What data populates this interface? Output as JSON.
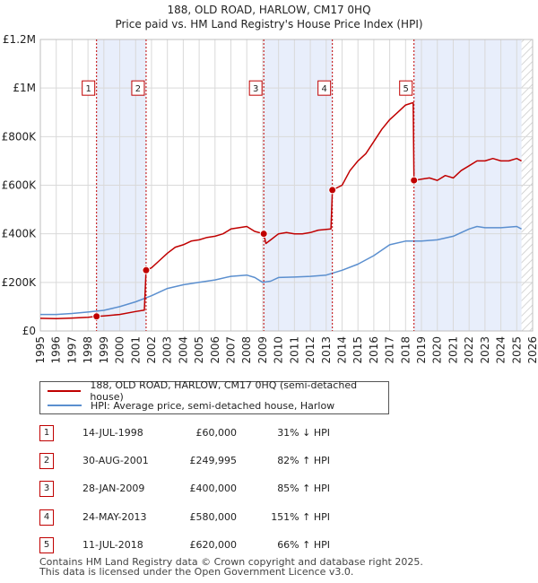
{
  "chart_data": {
    "type": "line",
    "title": "188, OLD ROAD, HARLOW, CM17 0HQ",
    "subtitle": "Price paid vs. HM Land Registry's House Price Index (HPI)",
    "xlim": [
      1995,
      2026
    ],
    "ylim": [
      0,
      1200000
    ],
    "x_ticks": [
      1995,
      1996,
      1997,
      1998,
      1999,
      2000,
      2001,
      2002,
      2003,
      2004,
      2005,
      2006,
      2007,
      2008,
      2009,
      2010,
      2011,
      2012,
      2013,
      2014,
      2015,
      2016,
      2017,
      2018,
      2019,
      2020,
      2021,
      2022,
      2023,
      2024,
      2025,
      2026
    ],
    "y_ticks": [
      {
        "value": 0,
        "label": "£0"
      },
      {
        "value": 200000,
        "label": "£200K"
      },
      {
        "value": 400000,
        "label": "£400K"
      },
      {
        "value": 600000,
        "label": "£600K"
      },
      {
        "value": 800000,
        "label": "£800K"
      },
      {
        "value": 1000000,
        "label": "£1M"
      },
      {
        "value": 1200000,
        "label": "£1.2M"
      }
    ],
    "shaded_spans": [
      [
        1998.54,
        2001.66
      ],
      [
        2009.07,
        2013.39
      ],
      [
        2018.53,
        2025.3
      ]
    ],
    "hatched_from": 2025.3,
    "series": [
      {
        "name": "188, OLD ROAD, HARLOW, CM17 0HQ (semi-detached house)",
        "color": "#c00000",
        "points": [
          [
            1995.0,
            52000
          ],
          [
            1996.0,
            51000
          ],
          [
            1997.0,
            53000
          ],
          [
            1998.0,
            56000
          ],
          [
            1998.54,
            60000
          ],
          [
            1999.0,
            62000
          ],
          [
            2000.0,
            68000
          ],
          [
            2001.0,
            80000
          ],
          [
            2001.55,
            86000
          ],
          [
            2001.66,
            249995
          ],
          [
            2002.0,
            260000
          ],
          [
            2002.5,
            290000
          ],
          [
            2003.0,
            320000
          ],
          [
            2003.5,
            345000
          ],
          [
            2004.0,
            355000
          ],
          [
            2004.5,
            370000
          ],
          [
            2005.0,
            375000
          ],
          [
            2005.5,
            385000
          ],
          [
            2006.0,
            390000
          ],
          [
            2006.5,
            400000
          ],
          [
            2007.0,
            420000
          ],
          [
            2007.5,
            425000
          ],
          [
            2008.0,
            430000
          ],
          [
            2008.5,
            410000
          ],
          [
            2009.07,
            400000
          ],
          [
            2009.2,
            360000
          ],
          [
            2009.6,
            380000
          ],
          [
            2010.0,
            400000
          ],
          [
            2010.5,
            405000
          ],
          [
            2011.0,
            400000
          ],
          [
            2011.5,
            400000
          ],
          [
            2012.0,
            405000
          ],
          [
            2012.5,
            415000
          ],
          [
            2013.3,
            420000
          ],
          [
            2013.39,
            580000
          ],
          [
            2014.0,
            600000
          ],
          [
            2014.5,
            660000
          ],
          [
            2015.0,
            700000
          ],
          [
            2015.5,
            730000
          ],
          [
            2016.0,
            780000
          ],
          [
            2016.5,
            830000
          ],
          [
            2017.0,
            870000
          ],
          [
            2017.5,
            900000
          ],
          [
            2018.0,
            930000
          ],
          [
            2018.48,
            940000
          ],
          [
            2018.53,
            620000
          ],
          [
            2019.0,
            625000
          ],
          [
            2019.5,
            630000
          ],
          [
            2020.0,
            620000
          ],
          [
            2020.5,
            640000
          ],
          [
            2021.0,
            630000
          ],
          [
            2021.5,
            660000
          ],
          [
            2022.0,
            680000
          ],
          [
            2022.5,
            700000
          ],
          [
            2023.0,
            700000
          ],
          [
            2023.5,
            710000
          ],
          [
            2024.0,
            700000
          ],
          [
            2024.5,
            700000
          ],
          [
            2025.0,
            710000
          ],
          [
            2025.3,
            700000
          ]
        ]
      },
      {
        "name": "HPI: Average price, semi-detached house, Harlow",
        "color": "#5b8fcf",
        "points": [
          [
            1995.0,
            68000
          ],
          [
            1996.0,
            68000
          ],
          [
            1997.0,
            72000
          ],
          [
            1998.0,
            78000
          ],
          [
            1999.0,
            85000
          ],
          [
            2000.0,
            100000
          ],
          [
            2001.0,
            120000
          ],
          [
            2002.0,
            145000
          ],
          [
            2003.0,
            175000
          ],
          [
            2004.0,
            190000
          ],
          [
            2005.0,
            200000
          ],
          [
            2006.0,
            210000
          ],
          [
            2007.0,
            225000
          ],
          [
            2008.0,
            230000
          ],
          [
            2008.5,
            220000
          ],
          [
            2009.0,
            200000
          ],
          [
            2009.5,
            205000
          ],
          [
            2010.0,
            220000
          ],
          [
            2011.0,
            222000
          ],
          [
            2012.0,
            225000
          ],
          [
            2013.0,
            230000
          ],
          [
            2014.0,
            250000
          ],
          [
            2015.0,
            275000
          ],
          [
            2016.0,
            310000
          ],
          [
            2017.0,
            355000
          ],
          [
            2018.0,
            370000
          ],
          [
            2019.0,
            370000
          ],
          [
            2020.0,
            375000
          ],
          [
            2021.0,
            390000
          ],
          [
            2022.0,
            420000
          ],
          [
            2022.5,
            430000
          ],
          [
            2023.0,
            425000
          ],
          [
            2024.0,
            425000
          ],
          [
            2025.0,
            430000
          ],
          [
            2025.3,
            420000
          ]
        ]
      }
    ],
    "sales": [
      {
        "label": "1",
        "x": 1998.54,
        "y": 60000
      },
      {
        "label": "2",
        "x": 2001.66,
        "y": 249995
      },
      {
        "label": "3",
        "x": 2009.07,
        "y": 400000
      },
      {
        "label": "4",
        "x": 2013.39,
        "y": 580000
      },
      {
        "label": "5",
        "x": 2018.53,
        "y": 620000
      }
    ],
    "badge_value": 1000000
  },
  "legend": {
    "property_label": "188, OLD ROAD, HARLOW, CM17 0HQ (semi-detached house)",
    "hpi_label": "HPI: Average price, semi-detached house, Harlow"
  },
  "sales_table": [
    {
      "num": "1",
      "date": "14-JUL-1998",
      "price": "£60,000",
      "hpi": "31% ↓ HPI"
    },
    {
      "num": "2",
      "date": "30-AUG-2001",
      "price": "£249,995",
      "hpi": "82% ↑ HPI"
    },
    {
      "num": "3",
      "date": "28-JAN-2009",
      "price": "£400,000",
      "hpi": "85% ↑ HPI"
    },
    {
      "num": "4",
      "date": "24-MAY-2013",
      "price": "£580,000",
      "hpi": "151% ↑ HPI"
    },
    {
      "num": "5",
      "date": "11-JUL-2018",
      "price": "£620,000",
      "hpi": "66% ↑ HPI"
    }
  ],
  "footer": {
    "line1": "Contains HM Land Registry data © Crown copyright and database right 2025.",
    "line2": "This data is licensed under the Open Government Licence v3.0."
  },
  "colors": {
    "property": "#c00000",
    "hpi": "#5b8fcf",
    "shade": "#e8eefb",
    "grid": "#d9d9d9"
  }
}
